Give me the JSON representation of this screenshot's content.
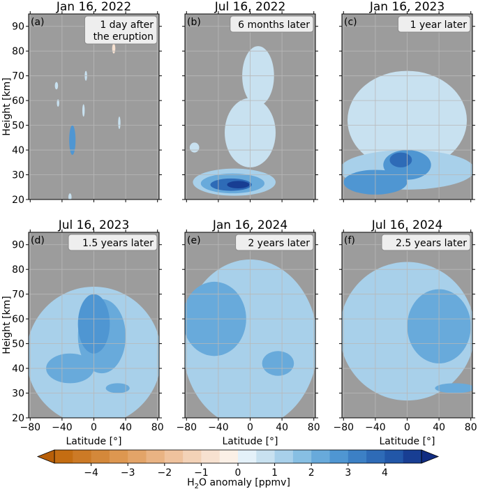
{
  "colors": {
    "background_na": "#9c9c9c",
    "frame": "#000000",
    "grid": "#b8b8b8",
    "badge_fill": "#eeeeee",
    "badge_stroke": "#888888"
  },
  "colorbar": {
    "label_prefix": "H",
    "label_sub": "2",
    "label_suffix": "O anomaly [ppmv]",
    "ticks": [
      "−4",
      "−3",
      "−2",
      "−1",
      "0",
      "1",
      "2",
      "3",
      "4"
    ],
    "levels": [
      -5.0,
      -4.5,
      -4.0,
      -3.5,
      -3.0,
      -2.5,
      -2.0,
      -1.5,
      -1.0,
      -0.5,
      0.0,
      0.5,
      1.0,
      1.5,
      2.0,
      2.5,
      3.0,
      3.5,
      4.0,
      4.5,
      5.0
    ],
    "colors": [
      "#c46d12",
      "#cc7a26",
      "#d4883a",
      "#dd9750",
      "#e3a468",
      "#e9b383",
      "#efc29d",
      "#f3d2b7",
      "#f7e1d0",
      "#fbf0e6",
      "#e4f1f9",
      "#c8e1f0",
      "#a8d0ea",
      "#87bfe3",
      "#68aadb",
      "#4f96d2",
      "#3c80c5",
      "#2e6bb7",
      "#2257a8",
      "#183e93"
    ]
  },
  "chart_data": [
    {
      "type": "heatmap",
      "letter": "(a)",
      "title": "Jan 16, 2022",
      "annotation": [
        "1 day after",
        "the eruption"
      ],
      "xlabel": "",
      "ylabel": "Height [km]",
      "xlim": [
        -82,
        82
      ],
      "ylim": [
        20,
        95
      ],
      "xticks": [],
      "yticks": [
        20,
        30,
        40,
        50,
        60,
        70,
        80,
        90
      ],
      "features": [
        {
          "lat": -27,
          "h": 44,
          "dlat": 2.5,
          "dh": 4,
          "value": 4.5
        },
        {
          "lat": -27,
          "h": 44,
          "dlat": 4,
          "dh": 6,
          "value": 2.5
        },
        {
          "lat": -47,
          "h": 66,
          "dlat": 2,
          "dh": 1.5,
          "value": 0.8
        },
        {
          "lat": -45,
          "h": 59,
          "dlat": 1.5,
          "dh": 1.5,
          "value": 0.8
        },
        {
          "lat": -13,
          "h": 56,
          "dlat": 1.5,
          "dh": 2.5,
          "value": 0.8
        },
        {
          "lat": -10,
          "h": 70,
          "dlat": 1.5,
          "dh": 2,
          "value": 0.8
        },
        {
          "lat": 32,
          "h": 51,
          "dlat": 1.5,
          "dh": 2.5,
          "value": 0.8
        },
        {
          "lat": 25,
          "h": 81,
          "dlat": 2,
          "dh": 2,
          "value": -0.8
        },
        {
          "lat": -30,
          "h": 21,
          "dlat": 2,
          "dh": 1.5,
          "value": 0.8
        }
      ]
    },
    {
      "type": "heatmap",
      "letter": "(b)",
      "title": "Jul 16, 2022",
      "annotation": [
        "6 months later"
      ],
      "xlabel": "",
      "ylabel": "",
      "xlim": [
        -82,
        82
      ],
      "ylim": [
        20,
        95
      ],
      "xticks": [],
      "yticks": [],
      "features": [
        {
          "lat": -20,
          "h": 27,
          "dlat": 52,
          "dh": 5.5,
          "value": 1.0
        },
        {
          "lat": -22,
          "h": 26.5,
          "dlat": 40,
          "dh": 4,
          "value": 2.0
        },
        {
          "lat": -24,
          "h": 26,
          "dlat": 26,
          "dh": 2.5,
          "value": 3.5
        },
        {
          "lat": -15,
          "h": 26,
          "dlat": 14,
          "dh": 1.5,
          "value": 4.5
        },
        {
          "lat": 0,
          "h": 47,
          "dlat": 32,
          "dh": 14,
          "value": 0.6
        },
        {
          "lat": 10,
          "h": 70,
          "dlat": 20,
          "dh": 12,
          "value": 0.6
        },
        {
          "lat": -70,
          "h": 41,
          "dlat": 6,
          "dh": 2,
          "value": 0.8
        }
      ]
    },
    {
      "type": "heatmap",
      "letter": "(c)",
      "title": "Jan 16, 2023",
      "annotation": [
        "1 year later"
      ],
      "xlabel": "",
      "ylabel": "",
      "xlim": [
        -82,
        82
      ],
      "ylim": [
        20,
        95
      ],
      "xticks": [],
      "yticks": [],
      "features": [
        {
          "lat": 0,
          "h": 52,
          "dlat": 75,
          "dh": 20,
          "value": 0.7
        },
        {
          "lat": 0,
          "h": 32,
          "dlat": 85,
          "dh": 8,
          "value": 1.2
        },
        {
          "lat": -40,
          "h": 27,
          "dlat": 40,
          "dh": 5,
          "value": 2.5
        },
        {
          "lat": 0,
          "h": 34,
          "dlat": 30,
          "dh": 6,
          "value": 2.5
        },
        {
          "lat": -8,
          "h": 36,
          "dlat": 14,
          "dh": 3,
          "value": 3.5
        }
      ]
    },
    {
      "type": "heatmap",
      "letter": "(d)",
      "title": "Jul 16, 2023",
      "annotation": [
        "1.5 years later"
      ],
      "xlabel": "Latitude [°]",
      "ylabel": "Height [km]",
      "xlim": [
        -82,
        82
      ],
      "ylim": [
        20,
        95
      ],
      "xticks": [
        -80,
        -40,
        0,
        40,
        80
      ],
      "yticks": [
        20,
        30,
        40,
        50,
        60,
        70,
        80,
        90
      ],
      "features": [
        {
          "lat": 0,
          "h": 45,
          "dlat": 85,
          "dh": 28,
          "value": 1.2
        },
        {
          "lat": 10,
          "h": 53,
          "dlat": 30,
          "dh": 15,
          "value": 2.0
        },
        {
          "lat": -30,
          "h": 40,
          "dlat": 30,
          "dh": 6,
          "value": 2.0
        },
        {
          "lat": 30,
          "h": 32,
          "dlat": 15,
          "dh": 2,
          "value": 2.0
        },
        {
          "lat": 0,
          "h": 58,
          "dlat": 20,
          "dh": 12,
          "value": 2.5
        }
      ]
    },
    {
      "type": "heatmap",
      "letter": "(e)",
      "title": "Jan 16, 2024",
      "annotation": [
        "2 years later"
      ],
      "xlabel": "Latitude [°]",
      "ylabel": "",
      "xlim": [
        -82,
        82
      ],
      "ylim": [
        20,
        95
      ],
      "xticks": [
        -80,
        -40,
        0,
        40,
        80
      ],
      "yticks": [],
      "features": [
        {
          "lat": 0,
          "h": 50,
          "dlat": 85,
          "dh": 34,
          "value": 1.2
        },
        {
          "lat": -45,
          "h": 60,
          "dlat": 40,
          "dh": 15,
          "value": 2.0
        },
        {
          "lat": 35,
          "h": 42,
          "dlat": 20,
          "dh": 5,
          "value": 2.0
        }
      ]
    },
    {
      "type": "heatmap",
      "letter": "(f)",
      "title": "Jul 16, 2024",
      "annotation": [
        "2.5 years later"
      ],
      "xlabel": "Latitude [°]",
      "ylabel": "",
      "xlim": [
        -82,
        82
      ],
      "ylim": [
        20,
        95
      ],
      "xticks": [
        -80,
        -40,
        0,
        40,
        80
      ],
      "yticks": [],
      "features": [
        {
          "lat": 0,
          "h": 55,
          "dlat": 85,
          "dh": 28,
          "value": 1.2
        },
        {
          "lat": 40,
          "h": 57,
          "dlat": 40,
          "dh": 15,
          "value": 2.0
        },
        {
          "lat": 60,
          "h": 32,
          "dlat": 25,
          "dh": 2,
          "value": 2.0
        }
      ]
    }
  ]
}
